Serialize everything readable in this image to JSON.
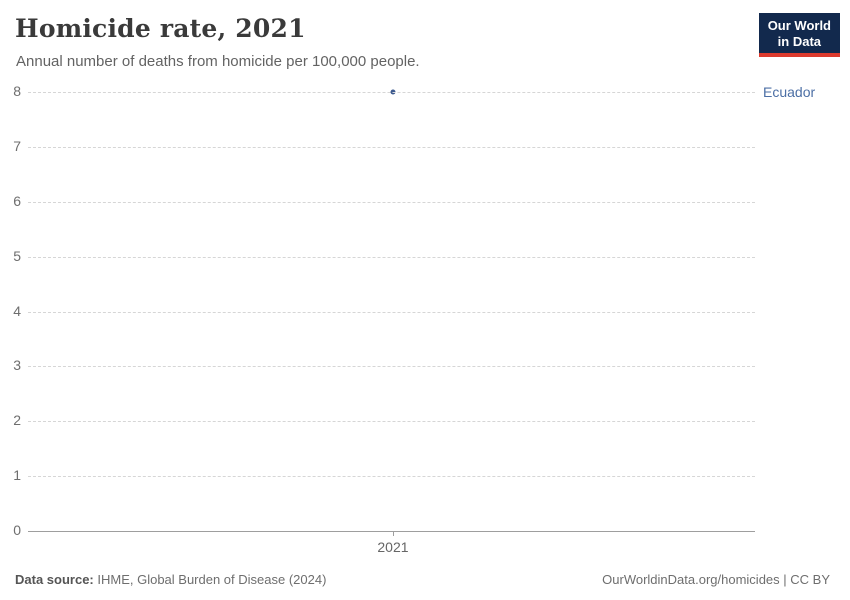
{
  "header": {
    "title": "Homicide rate, 2021",
    "subtitle": "Annual number of deaths from homicide per 100,000 people.",
    "logo": {
      "line1": "Our World",
      "line2": "in Data"
    }
  },
  "chart_data": {
    "type": "scatter",
    "title": "Homicide rate, 2021",
    "subtitle": "Annual number of deaths from homicide per 100,000 people.",
    "x": [
      2021
    ],
    "xticks": [
      2021
    ],
    "series": [
      {
        "name": "Ecuador",
        "values": [
          8
        ],
        "color": "#3d5a8f"
      }
    ],
    "xlabel": "",
    "ylabel": "",
    "ylim": [
      0,
      8
    ],
    "yticks": [
      0,
      1,
      2,
      3,
      4,
      5,
      6,
      7,
      8
    ],
    "grid": "horizontal-dashed",
    "legend_position": "right-of-point"
  },
  "footer": {
    "source_label": "Data source:",
    "source_text": " IHME, Global Burden of Disease (2024)",
    "credit": "OurWorldinData.org/homicides | CC BY"
  },
  "colors": {
    "entity_label": "#4c6fa5",
    "dot": "#3d5a8f",
    "grid": "#d6d6d6",
    "axis": "#9e9e9e",
    "title": "#3a3a3a",
    "subtitle": "#636363",
    "logo_navy": "#12294d",
    "logo_red": "#dc3a2e"
  }
}
